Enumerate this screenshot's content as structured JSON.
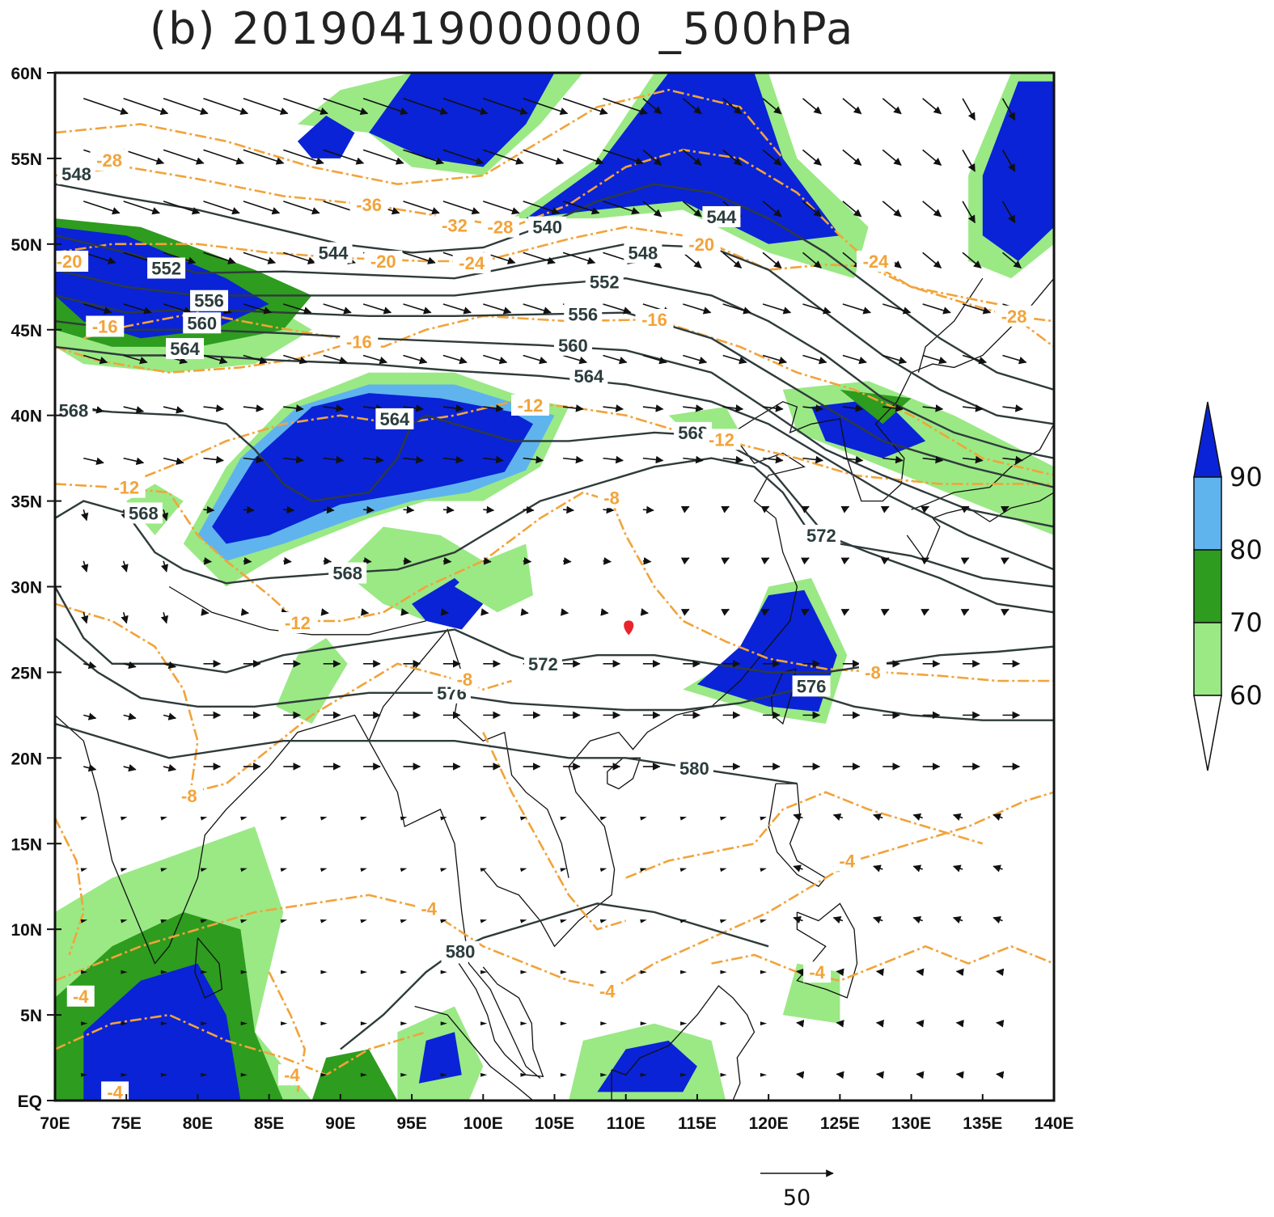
{
  "title": "(b) 20190419000000 _500hPa",
  "axes": {
    "x_ticks": [
      "70E",
      "75E",
      "80E",
      "85E",
      "90E",
      "95E",
      "100E",
      "105E",
      "110E",
      "115E",
      "120E",
      "125E",
      "130E",
      "135E",
      "140E"
    ],
    "y_ticks": [
      "EQ",
      "5N",
      "10N",
      "15N",
      "20N",
      "25N",
      "30N",
      "35N",
      "40N",
      "45N",
      "50N",
      "55N",
      "60N"
    ],
    "lon_range": [
      70,
      140
    ],
    "lat_range": [
      0,
      60
    ]
  },
  "colorbar": {
    "labels": [
      "90",
      "80",
      "70",
      "60"
    ],
    "colors": [
      "#0a23d6",
      "#5fb4ee",
      "#2e9c1e",
      "#9ae985",
      "#ffffff"
    ]
  },
  "reference_vector": {
    "label": "50"
  },
  "colors": {
    "height_contour": "#2f3b3b",
    "temperature_contour": "#f2a33a",
    "coastline": "#111111",
    "marker": "#e8242c"
  },
  "height_contour_labels": [
    {
      "text": "548",
      "lon": 71.5,
      "lat": 54.1
    },
    {
      "text": "552",
      "lon": 77.8,
      "lat": 48.6
    },
    {
      "text": "556",
      "lon": 80.8,
      "lat": 46.7
    },
    {
      "text": "560",
      "lon": 80.3,
      "lat": 45.4
    },
    {
      "text": "564",
      "lon": 79.1,
      "lat": 43.9
    },
    {
      "text": "568",
      "lon": 71.3,
      "lat": 40.3
    },
    {
      "text": "564",
      "lon": 93.8,
      "lat": 39.8
    },
    {
      "text": "568",
      "lon": 76.2,
      "lat": 34.3
    },
    {
      "text": "568",
      "lon": 90.5,
      "lat": 30.8
    },
    {
      "text": "544",
      "lon": 89.5,
      "lat": 49.5
    },
    {
      "text": "540",
      "lon": 104.5,
      "lat": 51.0
    },
    {
      "text": "544",
      "lon": 116.7,
      "lat": 51.6
    },
    {
      "text": "548",
      "lon": 111.2,
      "lat": 49.5
    },
    {
      "text": "552",
      "lon": 108.5,
      "lat": 47.8
    },
    {
      "text": "556",
      "lon": 107.0,
      "lat": 45.9
    },
    {
      "text": "560",
      "lon": 106.3,
      "lat": 44.1
    },
    {
      "text": "564",
      "lon": 107.4,
      "lat": 42.3
    },
    {
      "text": "568",
      "lon": 114.7,
      "lat": 39.0
    },
    {
      "text": "572",
      "lon": 123.7,
      "lat": 33.0
    },
    {
      "text": "572",
      "lon": 104.2,
      "lat": 25.5
    },
    {
      "text": "576",
      "lon": 97.8,
      "lat": 23.8
    },
    {
      "text": "576",
      "lon": 123.0,
      "lat": 24.2
    },
    {
      "text": "580",
      "lon": 114.8,
      "lat": 19.4
    },
    {
      "text": "580",
      "lon": 98.4,
      "lat": 8.7
    }
  ],
  "temperature_contour_labels": [
    {
      "text": "-28",
      "lon": 73.8,
      "lat": 54.9
    },
    {
      "text": "-36",
      "lon": 92.0,
      "lat": 52.3
    },
    {
      "text": "-32",
      "lon": 98.0,
      "lat": 51.1
    },
    {
      "text": "-28",
      "lon": 101.2,
      "lat": 51.0
    },
    {
      "text": "-20",
      "lon": 71.0,
      "lat": 49.0
    },
    {
      "text": "-20",
      "lon": 93.0,
      "lat": 49.0
    },
    {
      "text": "-24",
      "lon": 99.2,
      "lat": 48.9
    },
    {
      "text": "-20",
      "lon": 115.3,
      "lat": 50.0
    },
    {
      "text": "-24",
      "lon": 127.5,
      "lat": 49.0
    },
    {
      "text": "-28",
      "lon": 137.2,
      "lat": 45.8
    },
    {
      "text": "-16",
      "lon": 73.5,
      "lat": 45.2
    },
    {
      "text": "-16",
      "lon": 91.3,
      "lat": 44.3
    },
    {
      "text": "-16",
      "lon": 112.0,
      "lat": 45.6
    },
    {
      "text": "-12",
      "lon": 103.3,
      "lat": 40.6
    },
    {
      "text": "-12",
      "lon": 116.7,
      "lat": 38.6
    },
    {
      "text": "-12",
      "lon": 75.0,
      "lat": 35.8
    },
    {
      "text": "-12",
      "lon": 87.0,
      "lat": 27.9
    },
    {
      "text": "-8",
      "lon": 109.0,
      "lat": 35.2
    },
    {
      "text": "-8",
      "lon": 98.7,
      "lat": 24.6
    },
    {
      "text": "-8",
      "lon": 127.3,
      "lat": 25.0
    },
    {
      "text": "-8",
      "lon": 79.4,
      "lat": 17.8
    },
    {
      "text": "-4",
      "lon": 125.5,
      "lat": 14.0
    },
    {
      "text": "-4",
      "lon": 96.2,
      "lat": 11.2
    },
    {
      "text": "-4",
      "lon": 123.4,
      "lat": 7.5
    },
    {
      "text": "-4",
      "lon": 108.7,
      "lat": 6.4
    },
    {
      "text": "-4",
      "lon": 71.8,
      "lat": 6.1
    },
    {
      "text": "-4",
      "lon": 86.6,
      "lat": 1.5
    },
    {
      "text": "-4",
      "lon": 74.2,
      "lat": 0.5
    }
  ],
  "marker": {
    "lon": 110.2,
    "lat": 27.6
  }
}
